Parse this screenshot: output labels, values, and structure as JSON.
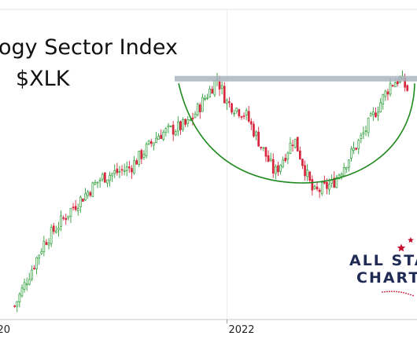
{
  "chart_data": {
    "type": "candlestick",
    "title_line1": "ogy Sector Index",
    "title_line2": "$XLK",
    "x_ticks": [
      {
        "label": "20",
        "date": "2020-01"
      },
      {
        "label": "2022",
        "date": "2022-01"
      }
    ],
    "grid": "vertical at x ticks",
    "up_color": "#2e9e3a",
    "down_color": "#d7263d",
    "series": [
      {
        "date": "2020-03",
        "close": 63
      },
      {
        "date": "2020-06",
        "close": 95
      },
      {
        "date": "2020-09",
        "close": 113
      },
      {
        "date": "2020-12",
        "close": 128
      },
      {
        "date": "2021-03",
        "close": 133
      },
      {
        "date": "2021-06",
        "close": 150
      },
      {
        "date": "2021-09",
        "close": 155
      },
      {
        "date": "2021-12",
        "close": 178
      },
      {
        "date": "2022-01",
        "close": 166
      },
      {
        "date": "2022-03",
        "close": 160
      },
      {
        "date": "2022-06",
        "close": 130
      },
      {
        "date": "2022-08",
        "close": 148
      },
      {
        "date": "2022-10",
        "close": 120
      },
      {
        "date": "2022-12",
        "close": 125
      },
      {
        "date": "2023-03",
        "close": 148
      },
      {
        "date": "2023-06",
        "close": 175
      },
      {
        "date": "2023-07",
        "close": 178
      },
      {
        "date": "2023-08",
        "close": 171
      }
    ],
    "resistance_level": 178,
    "resistance_color": "#aab4be",
    "base_arc_color": "#1e8a1e",
    "y_range": [
      55,
      190
    ]
  },
  "logo": {
    "line1": "ALL STA",
    "line2": "CHART",
    "text_color": "#1f2a55",
    "star_color": "#c8102e"
  }
}
